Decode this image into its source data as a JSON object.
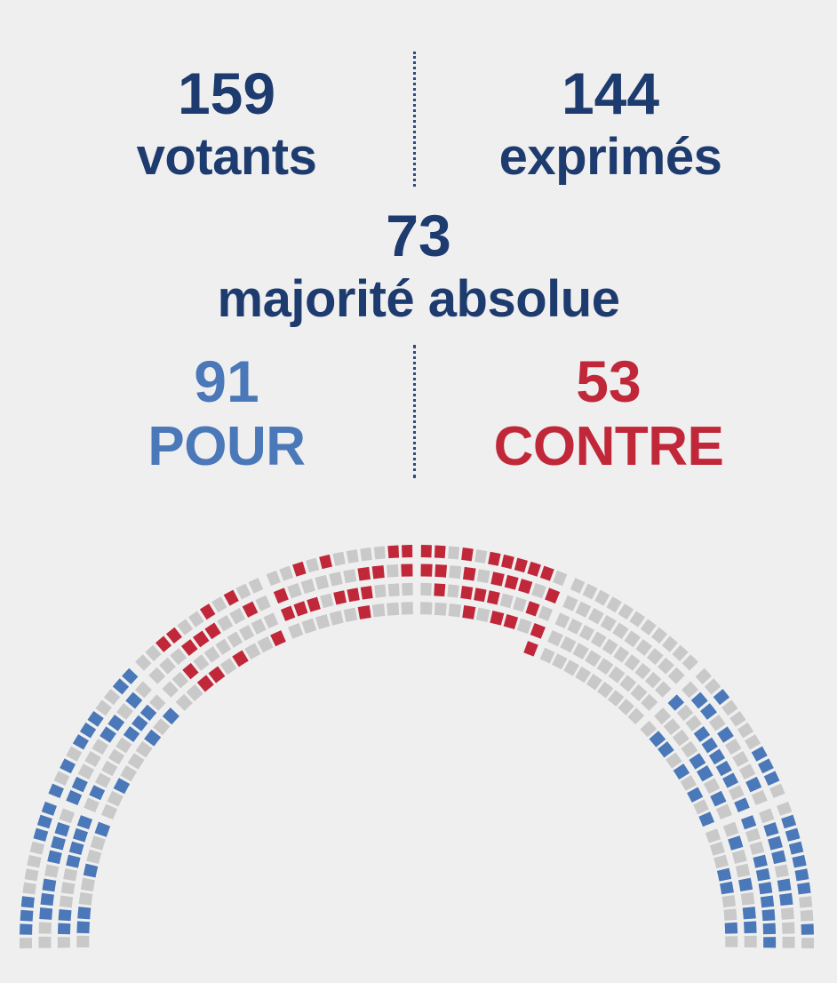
{
  "votants": {
    "value": "159",
    "label": "votants"
  },
  "exprimes": {
    "value": "144",
    "label": "exprimés"
  },
  "majorite": {
    "value": "73",
    "label": "majorité absolue"
  },
  "pour": {
    "value": "91",
    "label": "POUR"
  },
  "contre": {
    "value": "53",
    "label": "CONTRE"
  },
  "colors": {
    "navy": "#1d3b6e",
    "pour": "#4a78b8",
    "contre": "#c0283a",
    "abstention": "#c9c9c9",
    "empty": "#ffffff",
    "background": "#efefef"
  },
  "hemicycle": {
    "total_seats": 348,
    "pour_seats": 91,
    "contre_seats": 53
  }
}
